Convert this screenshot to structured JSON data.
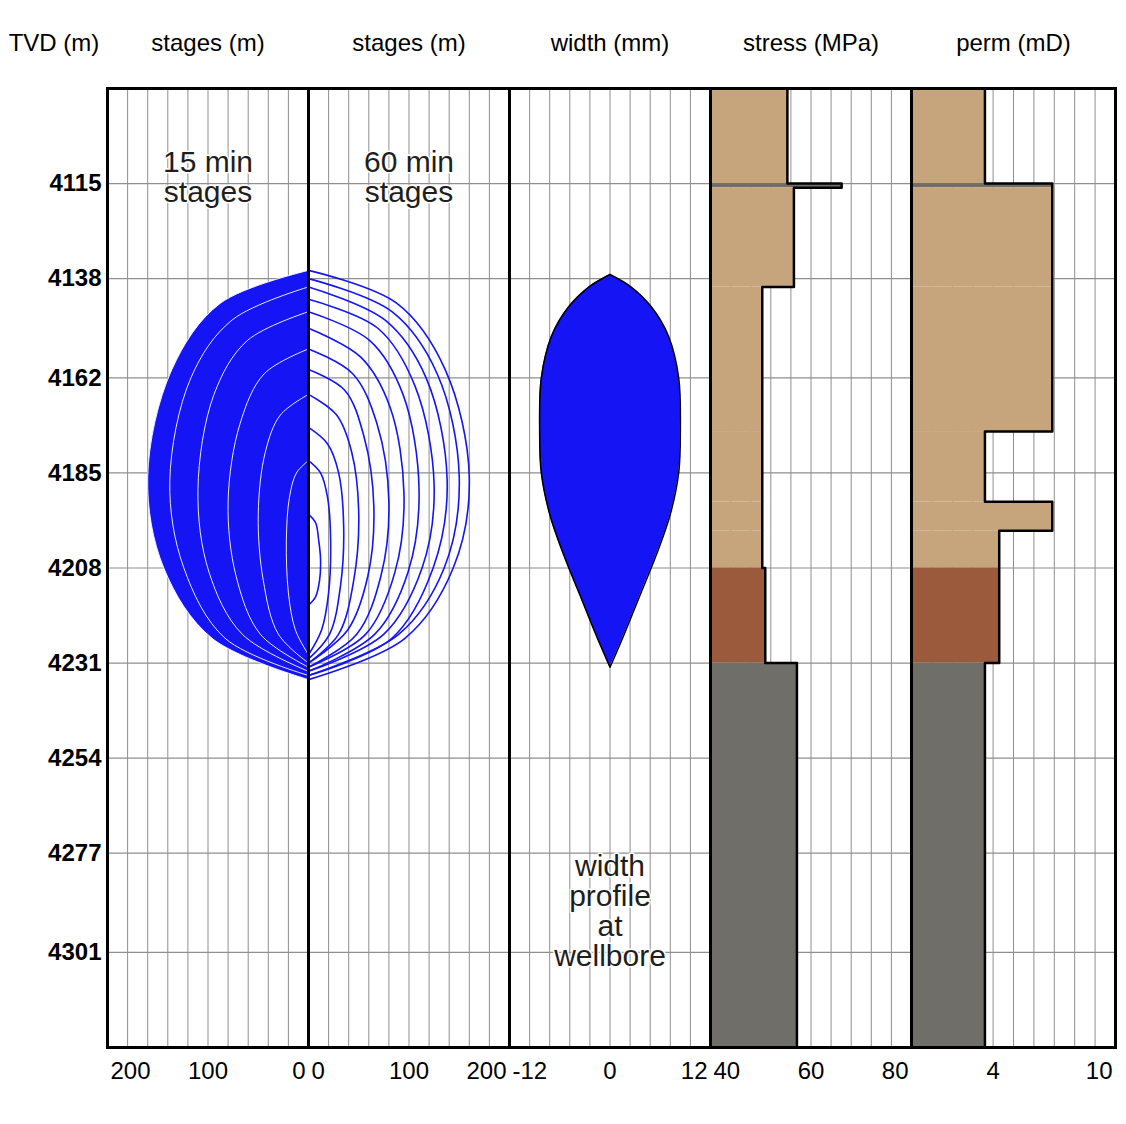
{
  "chart_data": [
    {
      "type": "filled_contours",
      "x_label": "stages (m)",
      "y_label": "TVD (m)",
      "annotation": "15 min stages",
      "color": "#1414f5",
      "xlim": [
        200,
        0
      ],
      "xticks": [
        200,
        100,
        0
      ],
      "minor_xticks": [
        180,
        160,
        140,
        120,
        80,
        60,
        40,
        20
      ],
      "ylim": [
        4092,
        4324
      ],
      "yticks": [
        4115,
        4138,
        4162,
        4185,
        4208,
        4231,
        4254,
        4277,
        4301
      ],
      "grid": true,
      "contours": [
        {
          "length": [
            0,
            88,
            136,
            160,
            144,
            96,
            0
          ],
          "depth": [
            4136,
            4144,
            4160,
            4186,
            4208,
            4225,
            4235
          ]
        },
        {
          "length": [
            0,
            76,
            117,
            138,
            124,
            83,
            0
          ],
          "depth": [
            4140,
            4148,
            4162,
            4187,
            4208,
            4225,
            4234
          ]
        },
        {
          "length": [
            0,
            61,
            94,
            110,
            99,
            66,
            0
          ],
          "depth": [
            4146,
            4153,
            4166,
            4189,
            4209,
            4224,
            4233
          ]
        },
        {
          "length": [
            0,
            44,
            68,
            80,
            72,
            48,
            0
          ],
          "depth": [
            4155,
            4161,
            4173,
            4192,
            4210,
            4224,
            4232
          ]
        },
        {
          "length": [
            0,
            28,
            43,
            50,
            45,
            30,
            0
          ],
          "depth": [
            4166,
            4171,
            4180,
            4195,
            4211,
            4224,
            4231
          ]
        },
        {
          "length": [
            0,
            12,
            19,
            22,
            20,
            13,
            0
          ],
          "depth": [
            4182,
            4185,
            4191,
            4201,
            4214,
            4223,
            4229
          ]
        }
      ]
    },
    {
      "type": "contours",
      "x_label": "stages (m)",
      "annotation": "60 min stages",
      "color": "#1414f5",
      "xlim": [
        0,
        200
      ],
      "xticks": [
        0,
        100,
        200
      ],
      "minor_xticks": [
        20,
        40,
        60,
        80,
        120,
        140,
        160,
        180
      ],
      "ylim": [
        4092,
        4324
      ],
      "yticks": [
        4115,
        4138,
        4162,
        4185,
        4208,
        4231,
        4254,
        4277,
        4301
      ],
      "grid": true,
      "tick_labels": "x",
      "contours": [
        {
          "length": [
            0,
            88,
            136,
            160,
            144,
            96,
            0
          ],
          "depth": [
            4136,
            4144,
            4160,
            4186,
            4208,
            4225,
            4235
          ]
        },
        {
          "length": [
            0,
            83,
            128,
            150,
            135,
            90,
            0
          ],
          "depth": [
            4138,
            4146,
            4161,
            4186,
            4208,
            4224,
            4234
          ]
        },
        {
          "length": [
            0,
            76,
            117,
            138,
            124,
            83,
            0
          ],
          "depth": [
            4140,
            4148,
            4162,
            4187,
            4208,
            4225,
            4234
          ]
        },
        {
          "length": [
            0,
            69,
            106,
            125,
            113,
            75,
            0
          ],
          "depth": [
            4143,
            4150,
            4164,
            4188,
            4208,
            4224,
            4233
          ]
        },
        {
          "length": [
            0,
            61,
            94,
            110,
            99,
            66,
            0
          ],
          "depth": [
            4146,
            4153,
            4166,
            4189,
            4209,
            4224,
            4233
          ]
        },
        {
          "length": [
            0,
            52,
            81,
            95,
            86,
            57,
            0
          ],
          "depth": [
            4150,
            4157,
            4169,
            4190,
            4209,
            4224,
            4232
          ]
        },
        {
          "length": [
            0,
            44,
            68,
            80,
            72,
            48,
            0
          ],
          "depth": [
            4155,
            4161,
            4173,
            4192,
            4210,
            4224,
            4232
          ]
        },
        {
          "length": [
            0,
            36,
            55,
            65,
            59,
            39,
            0
          ],
          "depth": [
            4160,
            4165,
            4176,
            4193,
            4210,
            4223,
            4231
          ]
        },
        {
          "length": [
            0,
            28,
            43,
            50,
            45,
            30,
            0
          ],
          "depth": [
            4166,
            4171,
            4180,
            4195,
            4211,
            4224,
            4231
          ]
        },
        {
          "length": [
            0,
            19,
            30,
            35,
            32,
            21,
            0
          ],
          "depth": [
            4174,
            4178,
            4185,
            4198,
            4212,
            4224,
            4230
          ]
        },
        {
          "length": [
            0,
            12,
            19,
            22,
            20,
            13,
            0
          ],
          "depth": [
            4182,
            4185,
            4191,
            4201,
            4214,
            4223,
            4229
          ]
        },
        {
          "length": [
            0,
            7,
            10,
            12,
            11,
            7,
            0
          ],
          "depth": [
            4195,
            4197,
            4201,
            4206,
            4211,
            4215,
            4217
          ]
        }
      ]
    },
    {
      "type": "area",
      "x_label": "width (mm)",
      "annotation": "width profile at wellbore",
      "color": "#1414f5",
      "xlim": [
        -12,
        12
      ],
      "xticks": [
        -12,
        0,
        12
      ],
      "minor_xticks": [
        -9.6,
        -7.2,
        -4.8,
        -2.4,
        2.4,
        4.8,
        7.2,
        9.6
      ],
      "ylim": [
        4092,
        4324
      ],
      "yticks": [
        4115,
        4138,
        4162,
        4185,
        4208,
        4231,
        4254,
        4277,
        4301
      ],
      "grid": true,
      "tick_labels": "x",
      "width_profile": {
        "depth": [
          4137,
          4140,
          4145,
          4152,
          4162,
          4175,
          4185,
          4195,
          4205,
          4215,
          4225,
          4232
        ],
        "left": [
          0,
          -2.5,
          -5,
          -7,
          -8.2,
          -8.4,
          -8.2,
          -7.2,
          -5.5,
          -3.5,
          -1.5,
          0
        ],
        "right": [
          0,
          2.5,
          5,
          7,
          8.2,
          8.4,
          8.2,
          7.2,
          5.5,
          3.5,
          1.5,
          0
        ]
      }
    },
    {
      "type": "step",
      "x_label": "stress (MPa)",
      "xlim": [
        40,
        80
      ],
      "xticks": [
        40,
        60,
        80
      ],
      "minor_xticks": [
        44,
        48,
        52,
        56,
        64,
        68,
        72,
        76
      ],
      "ylim": [
        4092,
        4324
      ],
      "yticks": [
        4115,
        4138,
        4162,
        4185,
        4208,
        4231,
        4254,
        4277,
        4301
      ],
      "grid": true,
      "tick_labels": "x",
      "layers": {
        "top": [
          4092,
          4115,
          4116,
          4140,
          4175,
          4192,
          4199,
          4208,
          4231
        ],
        "bottom": [
          4115,
          4116,
          4140,
          4175,
          4192,
          4199,
          4208,
          4231,
          4324
        ],
        "values": [
          55.3,
          66.1,
          56.6,
          50.3,
          50.3,
          50.3,
          50.3,
          50.9,
          57.2
        ],
        "colors": [
          "#c6a47c",
          "#6f6e68",
          "#c6a47c",
          "#c6a47c",
          "#c6a47c",
          "#c6a47c",
          "#c6a47c",
          "#9c5a3c",
          "#6f6e68"
        ]
      }
    },
    {
      "type": "step",
      "x_label": "perm (mD)",
      "xlim": [
        0,
        10
      ],
      "xticks": [
        4,
        10
      ],
      "minor_xticks": [
        1,
        2,
        3,
        5,
        6,
        7,
        8,
        9
      ],
      "ylim": [
        4092,
        4324
      ],
      "yticks": [
        4115,
        4138,
        4162,
        4185,
        4208,
        4231,
        4254,
        4277,
        4301
      ],
      "grid": true,
      "tick_labels": "x",
      "layers": {
        "top": [
          4092,
          4115,
          4116,
          4140,
          4175,
          4192,
          4199,
          4208,
          4231
        ],
        "bottom": [
          4115,
          4116,
          4140,
          4175,
          4192,
          4199,
          4208,
          4231,
          4324
        ],
        "values": [
          3.6,
          6.9,
          6.9,
          6.9,
          3.6,
          6.9,
          4.3,
          4.3,
          3.6
        ],
        "colors": [
          "#c6a47c",
          "#6f6e68",
          "#c6a47c",
          "#c6a47c",
          "#c6a47c",
          "#c6a47c",
          "#c6a47c",
          "#9c5a3c",
          "#6f6e68"
        ]
      }
    }
  ]
}
